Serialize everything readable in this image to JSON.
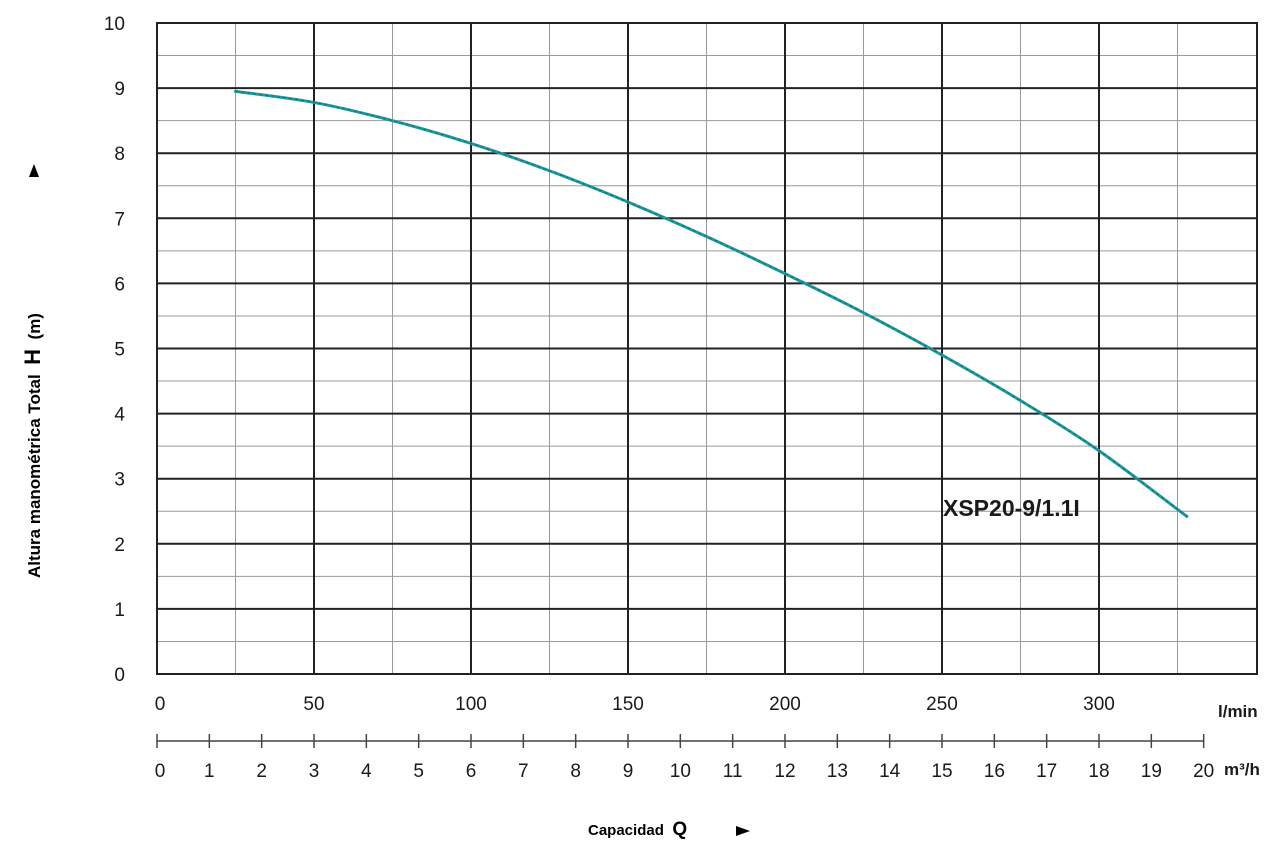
{
  "chart_data": {
    "type": "line",
    "ylabel_prefix": "Altura manométrica Total",
    "ylabel_symbol": "H",
    "ylabel_unit": "(m)",
    "xlabel_prefix": "Capacidad",
    "xlabel_symbol": "Q",
    "ylim": [
      0,
      10
    ],
    "yticks": [
      0,
      1,
      2,
      3,
      4,
      5,
      6,
      7,
      8,
      9,
      10
    ],
    "xlim": [
      0,
      333
    ],
    "xticks": [
      0,
      50,
      100,
      150,
      200,
      250,
      300
    ],
    "x_unit": "l/min",
    "secondary_x_unit": "m³/h",
    "secondary_xticks": [
      0,
      1,
      2,
      3,
      4,
      5,
      6,
      7,
      8,
      9,
      10,
      11,
      12,
      13,
      14,
      15,
      16,
      17,
      18,
      19,
      20
    ],
    "grid": true,
    "series": [
      {
        "name": "XSP20-9/1.1I",
        "x": [
          25,
          50,
          75,
          100,
          125,
          150,
          175,
          200,
          225,
          250,
          275,
          300,
          328
        ],
        "y": [
          8.95,
          8.78,
          8.5,
          8.15,
          7.73,
          7.25,
          6.72,
          6.15,
          5.55,
          4.9,
          4.2,
          3.43,
          2.42
        ]
      }
    ],
    "colors": {
      "curve": "#1e9a9e",
      "grid": "#222222",
      "minor_grid": "#9a9a9a"
    }
  }
}
